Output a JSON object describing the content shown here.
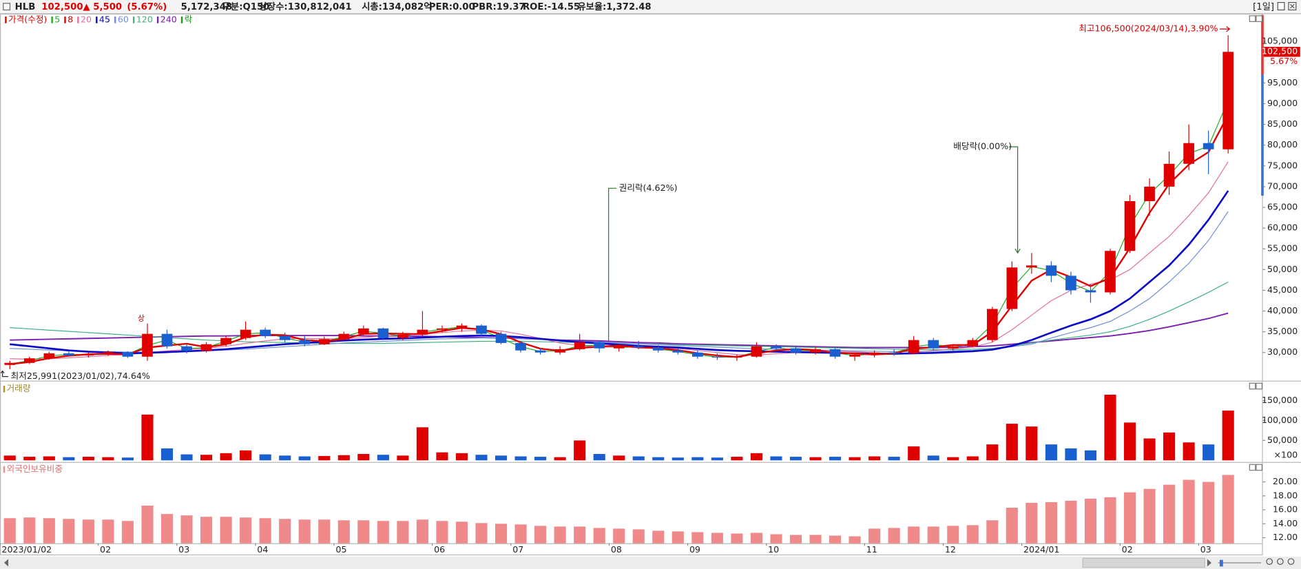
{
  "header": {
    "symbol": "HLB",
    "price": "102,500",
    "change": "▲ 5,500",
    "change_pct": "(5.67%)",
    "volume": "5,172,348",
    "fields": [
      "구분:Q150",
      "상장수:130,812,041",
      "시총:134,082억",
      "PER:0.00",
      "PBR:19.37",
      "ROE:-14.55",
      "유보율:1,372.48"
    ],
    "period": "[1일]"
  },
  "chart_data": [
    {
      "type": "candlestick",
      "legend_title": "가격(수정)",
      "color_up": "#e00000",
      "color_down": "#1a5fd0",
      "ex_rights_label": "락",
      "ex_rights_color": "#1a9a1a",
      "annotations": [
        "최고106,500(2024/03/14),3.90%",
        "최저25,991(2023/01/02),74.64%",
        "권리락(4.62%)",
        "배당락(0.00%)",
        "상"
      ],
      "current_price": {
        "value": 102500,
        "label": "102,500"
      },
      "current_change": "5.67%",
      "categories": [
        "2023/01/02",
        null,
        null,
        null,
        null,
        "02",
        null,
        null,
        null,
        "03",
        null,
        null,
        null,
        "04",
        null,
        null,
        null,
        "05",
        null,
        null,
        null,
        null,
        "06",
        null,
        null,
        null,
        "07",
        null,
        null,
        null,
        null,
        "08",
        null,
        null,
        null,
        "09",
        null,
        null,
        null,
        "10",
        null,
        null,
        null,
        null,
        "11",
        null,
        null,
        null,
        "12",
        null,
        null,
        null,
        "2024/01",
        null,
        null,
        null,
        null,
        "02",
        null,
        null,
        null,
        "03",
        null
      ],
      "open": [
        27000,
        27500,
        28600,
        29800,
        29300,
        29600,
        30100,
        29000,
        34500,
        31500,
        30400,
        32000,
        33500,
        35500,
        34000,
        33000,
        32000,
        33200,
        34500,
        35800,
        33500,
        34300,
        35500,
        35800,
        36500,
        34500,
        32300,
        30500,
        30000,
        30800,
        32500,
        31000,
        31500,
        31200,
        30500,
        30000,
        29000,
        28800,
        29000,
        31500,
        31000,
        30000,
        30800,
        29000,
        29500,
        30000,
        29800,
        33000,
        31000,
        31500,
        33000,
        40500,
        50500,
        51000,
        48500,
        45000,
        44500,
        54500,
        66500,
        70000,
        75500,
        80500,
        79000
      ],
      "high": [
        28000,
        29000,
        30200,
        30500,
        30000,
        30500,
        30300,
        37000,
        35500,
        32000,
        32500,
        34000,
        37500,
        36000,
        34800,
        34000,
        33800,
        35000,
        36500,
        36000,
        35000,
        40000,
        36500,
        37000,
        36800,
        35000,
        32800,
        31000,
        31500,
        34500,
        33000,
        32000,
        32800,
        31800,
        31000,
        30500,
        29800,
        29500,
        32500,
        32000,
        31500,
        31200,
        31000,
        30000,
        30500,
        30800,
        34000,
        33500,
        32000,
        33500,
        41000,
        52000,
        54000,
        52000,
        49500,
        46500,
        55000,
        68000,
        72000,
        78500,
        85000,
        83500,
        106500
      ],
      "low": [
        25991,
        27200,
        28300,
        29000,
        28800,
        29200,
        28700,
        28000,
        31000,
        29800,
        30000,
        31500,
        33000,
        33500,
        32500,
        31500,
        31800,
        33000,
        34000,
        33000,
        33000,
        34000,
        34800,
        35000,
        34000,
        32000,
        30000,
        29500,
        29500,
        30500,
        30000,
        30200,
        30800,
        30000,
        29500,
        28500,
        28200,
        28000,
        28800,
        30500,
        29500,
        29500,
        28500,
        28000,
        28800,
        29200,
        29600,
        30500,
        30500,
        31200,
        32500,
        40000,
        49000,
        47000,
        44000,
        42000,
        44000,
        54000,
        63000,
        68000,
        74000,
        73000,
        78000
      ],
      "close": [
        27500,
        28600,
        29800,
        29300,
        29600,
        30100,
        29000,
        34500,
        31500,
        30400,
        32000,
        33500,
        35500,
        34000,
        33000,
        32000,
        33200,
        34500,
        35800,
        33500,
        34300,
        35500,
        35800,
        36500,
        34500,
        32300,
        30500,
        30000,
        30800,
        32500,
        31000,
        31500,
        31200,
        30500,
        30000,
        29000,
        28800,
        29000,
        31500,
        31000,
        30000,
        30800,
        29000,
        29500,
        30000,
        29800,
        33000,
        31000,
        31500,
        33000,
        40500,
        50500,
        51000,
        48500,
        45000,
        44500,
        54500,
        66500,
        70000,
        75500,
        80500,
        79000,
        102500
      ],
      "series": [
        {
          "name": "5",
          "color": "#22aa22",
          "values": [
            27250,
            28050,
            29200,
            29550,
            29450,
            29850,
            29550,
            31750,
            33000,
            30950,
            31200,
            32750,
            34500,
            34750,
            33500,
            32500,
            32600,
            33850,
            35150,
            34650,
            33900,
            34900,
            35650,
            36150,
            35500,
            33400,
            31400,
            30250,
            30400,
            31650,
            31750,
            31250,
            31350,
            30850,
            30250,
            29500,
            28900,
            28900,
            30250,
            31250,
            30500,
            30400,
            29900,
            29250,
            29750,
            29900,
            31400,
            32000,
            31250,
            32250,
            36750,
            45500,
            50750,
            49750,
            46750,
            44750,
            49500,
            60500,
            68250,
            72750,
            78000,
            79750,
            90750
          ]
        },
        {
          "name": "8",
          "color": "#e00000",
          "values": [
            27170,
            27700,
            28630,
            29230,
            29570,
            29670,
            29570,
            31200,
            31670,
            32130,
            31300,
            31970,
            33670,
            34330,
            34170,
            33000,
            32730,
            33230,
            34500,
            34600,
            34530,
            34430,
            35200,
            35930,
            35600,
            34430,
            32430,
            30930,
            30430,
            31100,
            31430,
            31670,
            31230,
            31070,
            30570,
            29830,
            29270,
            28930,
            29770,
            30500,
            30830,
            30600,
            29930,
            29770,
            29500,
            29770,
            30930,
            31270,
            31830,
            31830,
            35000,
            41330,
            47330,
            50000,
            48170,
            46000,
            48000,
            55170,
            63670,
            70670,
            75330,
            78330,
            87330
          ]
        },
        {
          "name": "20",
          "color": "#e070a0",
          "values": [
            28500,
            28400,
            28500,
            28700,
            29000,
            29300,
            29500,
            30000,
            30400,
            30700,
            31000,
            31500,
            32200,
            32800,
            33300,
            33400,
            33300,
            33300,
            33600,
            34000,
            34200,
            34400,
            34800,
            35200,
            35400,
            35200,
            34400,
            33400,
            32300,
            31700,
            31300,
            31300,
            31400,
            31300,
            31000,
            30500,
            30000,
            29500,
            29400,
            29700,
            30000,
            30300,
            30300,
            30200,
            29900,
            29600,
            30000,
            30500,
            30900,
            31300,
            32500,
            35500,
            39000,
            42500,
            45000,
            46500,
            47500,
            50000,
            54000,
            58000,
            63000,
            68500,
            76000
          ]
        },
        {
          "name": "45",
          "color": "#0a0ac8",
          "values": [
            32000,
            31500,
            31000,
            30500,
            30200,
            30000,
            29800,
            29900,
            30100,
            30300,
            30500,
            30800,
            31200,
            31600,
            32000,
            32300,
            32600,
            32900,
            33100,
            33300,
            33400,
            33600,
            33800,
            34000,
            34100,
            34000,
            33700,
            33300,
            32900,
            32500,
            32200,
            31900,
            31600,
            31400,
            31200,
            30900,
            30600,
            30400,
            30300,
            30200,
            30100,
            30000,
            29900,
            29800,
            29700,
            29700,
            29800,
            29900,
            30100,
            30300,
            30700,
            31600,
            33000,
            34800,
            36500,
            38000,
            40000,
            43000,
            47000,
            51000,
            56000,
            62000,
            69000
          ]
        },
        {
          "name": "60",
          "color": "#6f8fd8",
          "values": [
            31000,
            30800,
            30600,
            30400,
            30300,
            30200,
            30100,
            30100,
            30200,
            30300,
            30400,
            30600,
            30800,
            31100,
            31400,
            31700,
            32000,
            32300,
            32500,
            32700,
            32900,
            33100,
            33300,
            33400,
            33500,
            33500,
            33400,
            33200,
            33000,
            32700,
            32500,
            32300,
            32100,
            31900,
            31700,
            31500,
            31300,
            31100,
            30900,
            30800,
            30700,
            30600,
            30500,
            30400,
            30300,
            30200,
            30200,
            30300,
            30400,
            30500,
            30800,
            31400,
            32000,
            33500,
            34800,
            36000,
            37500,
            40000,
            43000,
            47000,
            51500,
            57000,
            64000
          ]
        },
        {
          "name": "120",
          "color": "#40b080",
          "values": [
            36000,
            35700,
            35400,
            35100,
            34800,
            34500,
            34200,
            33900,
            33600,
            33300,
            33000,
            32800,
            32600,
            32500,
            32400,
            32300,
            32200,
            32200,
            32200,
            32200,
            32300,
            32400,
            32500,
            32600,
            32700,
            32700,
            32700,
            32600,
            32500,
            32400,
            32300,
            32200,
            32100,
            32000,
            31900,
            31800,
            31700,
            31600,
            31500,
            31400,
            31300,
            31200,
            31100,
            31000,
            30900,
            30800,
            30700,
            30700,
            30700,
            30800,
            31000,
            31600,
            32300,
            33000,
            33600,
            34200,
            35000,
            36300,
            38000,
            40000,
            42200,
            44500,
            47000
          ]
        },
        {
          "name": "240",
          "color": "#7a1fb0",
          "values": [
            33000,
            33100,
            33200,
            33300,
            33400,
            33500,
            33600,
            33700,
            33800,
            33900,
            34000,
            34000,
            34100,
            34100,
            34100,
            34100,
            34100,
            34100,
            34000,
            34000,
            34000,
            33900,
            33800,
            33700,
            33600,
            33500,
            33400,
            33200,
            33000,
            32900,
            32800,
            32600,
            32400,
            32300,
            32100,
            32000,
            31900,
            31800,
            31700,
            31600,
            31500,
            31400,
            31300,
            31200,
            31200,
            31200,
            31200,
            31200,
            31300,
            31400,
            31600,
            32000,
            32400,
            32800,
            33200,
            33600,
            34000,
            34600,
            35300,
            36200,
            37200,
            38200,
            39500
          ]
        }
      ],
      "ylim": [
        23400,
        111400
      ],
      "yticks": [
        {
          "value": 105000,
          "label": "105,000"
        },
        {
          "value": 95000,
          "label": "95,000"
        },
        {
          "value": 90000,
          "label": "90,000"
        },
        {
          "value": 85000,
          "label": "85,000"
        },
        {
          "value": 80000,
          "label": "80,000"
        },
        {
          "value": 75000,
          "label": "75,000"
        },
        {
          "value": 70000,
          "label": "70,000"
        },
        {
          "value": 65000,
          "label": "65,000"
        },
        {
          "value": 60000,
          "label": "60,000"
        },
        {
          "value": 55000,
          "label": "55,000"
        },
        {
          "value": 50000,
          "label": "50,000"
        },
        {
          "value": 45000,
          "label": "45,000"
        },
        {
          "value": 40000,
          "label": "40,000"
        },
        {
          "value": 35000,
          "label": "35,000"
        },
        {
          "value": 30000,
          "label": "30,000"
        }
      ]
    },
    {
      "type": "bar",
      "title": "거래량",
      "unit_label": "×100",
      "values": [
        12000,
        9000,
        10000,
        8000,
        9000,
        8000,
        7000,
        115000,
        30000,
        15000,
        14000,
        18000,
        25000,
        15000,
        12000,
        10000,
        11000,
        13000,
        16000,
        14000,
        12000,
        83000,
        20000,
        18000,
        14000,
        12000,
        10000,
        9000,
        8000,
        50000,
        16000,
        12000,
        10000,
        8000,
        7000,
        8000,
        7000,
        9000,
        18000,
        10000,
        9000,
        8000,
        9000,
        8000,
        10000,
        9000,
        35000,
        12000,
        8000,
        10000,
        40000,
        92000,
        85000,
        40000,
        30000,
        25000,
        165000,
        95000,
        55000,
        70000,
        45000,
        40000,
        125000
      ],
      "ylim": [
        0,
        198000
      ],
      "yticks": [
        {
          "value": 150000,
          "label": "150,000"
        },
        {
          "value": 100000,
          "label": "100,000"
        },
        {
          "value": 50000,
          "label": "50,000"
        }
      ]
    },
    {
      "type": "bar",
      "title": "외국인보유비중",
      "color": "#f08a8a",
      "values": [
        14.8,
        14.9,
        14.8,
        14.7,
        14.6,
        14.6,
        14.4,
        16.6,
        15.4,
        15.2,
        15.0,
        15.0,
        14.9,
        14.8,
        14.7,
        14.6,
        14.6,
        14.5,
        14.5,
        14.4,
        14.4,
        14.6,
        14.4,
        14.3,
        14.1,
        14.0,
        13.9,
        13.7,
        13.6,
        13.6,
        13.4,
        13.3,
        13.2,
        13.0,
        12.9,
        12.8,
        12.7,
        12.6,
        12.7,
        12.5,
        12.4,
        12.4,
        12.3,
        12.2,
        13.3,
        13.4,
        13.6,
        13.6,
        13.7,
        13.8,
        14.5,
        16.3,
        17.0,
        17.1,
        17.3,
        17.6,
        17.8,
        18.5,
        19.0,
        19.6,
        20.3,
        20.0,
        21.0
      ],
      "ylim": [
        11.2,
        22.5
      ],
      "yticks": [
        {
          "value": 20,
          "label": "20.00"
        },
        {
          "value": 18,
          "label": "18.00"
        },
        {
          "value": 16,
          "label": "16.00"
        },
        {
          "value": 14,
          "label": "14.00"
        },
        {
          "value": 12,
          "label": "12.00"
        }
      ]
    }
  ]
}
